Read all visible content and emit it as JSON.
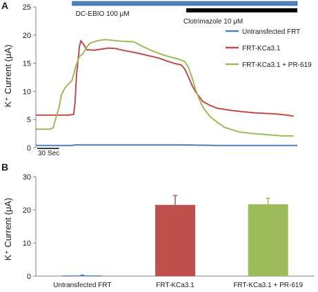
{
  "figure": {
    "panel_a_label": "A",
    "panel_b_label": "B"
  },
  "chart_data": [
    {
      "type": "line",
      "panel": "A",
      "ylabel": "K⁺ Current (μA)",
      "ylim": [
        0,
        25
      ],
      "yticks": [
        "0",
        "5",
        "10",
        "15",
        "20",
        "25"
      ],
      "xlim": [
        0,
        360
      ],
      "x_unit": "s",
      "grid": false,
      "legend_position": "right",
      "scale_bar_label": "30 Sec",
      "scale_bar_seconds": 30,
      "treatment_bars": [
        {
          "label": "DC-EBIO 100 μM",
          "start": 50,
          "end": 360,
          "fill": "#4f81bd"
        },
        {
          "label": "Clotrimazole 10 μM",
          "start": 207,
          "end": 360,
          "fill": "#000000"
        }
      ],
      "series": [
        {
          "name": "Untransfected FRT",
          "color": "#4a7ebb",
          "points": [
            [
              0,
              0.4
            ],
            [
              50,
              0.4
            ],
            [
              55,
              0.5
            ],
            [
              150,
              0.5
            ],
            [
              200,
              0.5
            ],
            [
              250,
              0.4
            ],
            [
              360,
              0.4
            ]
          ]
        },
        {
          "name": "FRT-KCa3.1",
          "color": "#be4b48",
          "points": [
            [
              0,
              5.8
            ],
            [
              45,
              5.8
            ],
            [
              52,
              5.9
            ],
            [
              54,
              8
            ],
            [
              56,
              13
            ],
            [
              60,
              18
            ],
            [
              62,
              19
            ],
            [
              66,
              18.3
            ],
            [
              70,
              17.4
            ],
            [
              80,
              17.3
            ],
            [
              90,
              17.5
            ],
            [
              100,
              17.7
            ],
            [
              110,
              17.6
            ],
            [
              120,
              17.3
            ],
            [
              140,
              16.8
            ],
            [
              150,
              16.5
            ],
            [
              170,
              15.9
            ],
            [
              180,
              15.4
            ],
            [
              190,
              15
            ],
            [
              200,
              14.7
            ],
            [
              205,
              14
            ],
            [
              210,
              12.6
            ],
            [
              215,
              11.1
            ],
            [
              220,
              9.9
            ],
            [
              230,
              8.2
            ],
            [
              240,
              7.5
            ],
            [
              250,
              7
            ],
            [
              270,
              6.6
            ],
            [
              300,
              6.2
            ],
            [
              330,
              6
            ],
            [
              345,
              5.8
            ],
            [
              355,
              5.6
            ]
          ]
        },
        {
          "name": "FRT-KCa3.1 + PR-619",
          "color": "#9bbb59",
          "points": [
            [
              0,
              3.3
            ],
            [
              20,
              3.3
            ],
            [
              24,
              3.6
            ],
            [
              28,
              5.5
            ],
            [
              32,
              7.2
            ],
            [
              35,
              9.3
            ],
            [
              40,
              10.6
            ],
            [
              45,
              11.3
            ],
            [
              50,
              12
            ],
            [
              55,
              14.5
            ],
            [
              60,
              16.2
            ],
            [
              65,
              16.7
            ],
            [
              70,
              17.9
            ],
            [
              75,
              18.6
            ],
            [
              85,
              19
            ],
            [
              95,
              19.2
            ],
            [
              110,
              19
            ],
            [
              120,
              18.9
            ],
            [
              135,
              18.8
            ],
            [
              145,
              18.1
            ],
            [
              160,
              17.2
            ],
            [
              175,
              16.5
            ],
            [
              185,
              16.1
            ],
            [
              195,
              15.8
            ],
            [
              205,
              15.3
            ],
            [
              210,
              14.3
            ],
            [
              215,
              12.5
            ],
            [
              220,
              10.3
            ],
            [
              225,
              8.6
            ],
            [
              230,
              7.2
            ],
            [
              240,
              5.5
            ],
            [
              250,
              4.5
            ],
            [
              260,
              3.6
            ],
            [
              280,
              2.8
            ],
            [
              300,
              2.5
            ],
            [
              320,
              2.3
            ],
            [
              340,
              2.1
            ],
            [
              355,
              2.1
            ]
          ]
        }
      ]
    },
    {
      "type": "bar",
      "panel": "B",
      "ylabel": "K⁺ Current (μA)",
      "ylim": [
        0,
        30
      ],
      "yticks": [
        "0",
        "10",
        "20",
        "30"
      ],
      "grid": false,
      "categories": [
        "Untransfected FRT",
        "FRT-KCa3.1",
        "FRT-KCa3.1 + PR-619"
      ],
      "values": [
        0.2,
        21.5,
        21.7
      ],
      "errors": [
        0.1,
        2.8,
        1.8
      ],
      "colors": [
        "#4a7ebb",
        "#c0504d",
        "#9bbb59"
      ]
    }
  ]
}
